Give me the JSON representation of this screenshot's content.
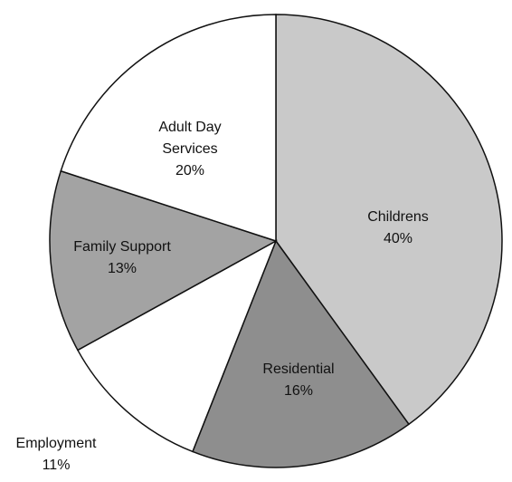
{
  "chart_data": {
    "type": "pie",
    "categories": [
      "Childrens",
      "Residential",
      "Employment",
      "Family Support",
      "Adult Day Services"
    ],
    "values": [
      40,
      16,
      11,
      13,
      20
    ],
    "value_labels": [
      "40%",
      "16%",
      "11%",
      "13%",
      "20%"
    ],
    "colors": [
      "#c9c9c9",
      "#8e8e8e",
      "#ffffff",
      "#a3a3a3",
      "#ffffff"
    ]
  }
}
